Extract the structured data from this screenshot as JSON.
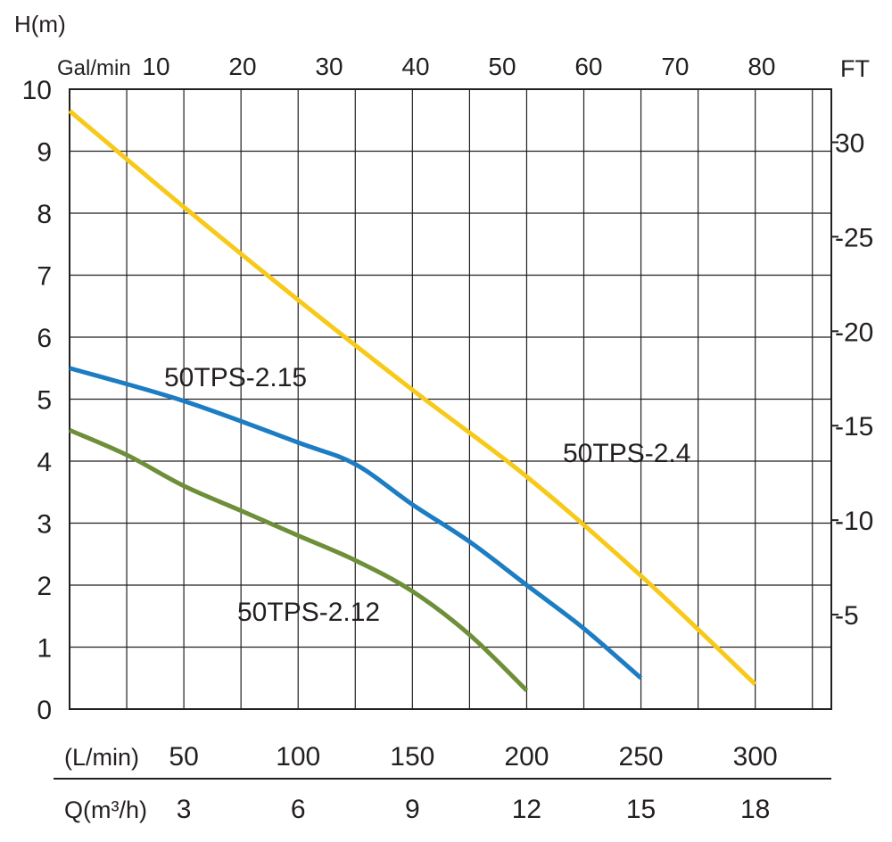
{
  "chart_data": {
    "type": "line",
    "axes": {
      "left": {
        "label": "H(m)",
        "min": 0,
        "max": 10,
        "ticks": [
          "0",
          "1",
          "2",
          "3",
          "4",
          "5",
          "6",
          "7",
          "8",
          "9",
          "10"
        ]
      },
      "top": {
        "label": "Gal/min",
        "ticks": [
          "10",
          "20",
          "30",
          "40",
          "50",
          "60",
          "70",
          "80"
        ]
      },
      "right": {
        "label": "FT",
        "ticks": [
          "30",
          "-25",
          "-20",
          "-15",
          "-10",
          "-5"
        ]
      },
      "bottom_lmin": {
        "label": "(L/min)",
        "ticks": [
          "50",
          "100",
          "150",
          "200",
          "250",
          "300"
        ]
      },
      "bottom_q": {
        "label": "Q(m³/h)",
        "ticks": [
          "3",
          "6",
          "9",
          "12",
          "15",
          "18"
        ]
      }
    },
    "x_unit": "L/min",
    "xlim": [
      0,
      333.3
    ],
    "ylim": [
      0,
      10
    ],
    "grid": true,
    "series": [
      {
        "name": "50TPS-2.4",
        "color": "#f7c919",
        "x": [
          0,
          50,
          100,
          150,
          200,
          250,
          300
        ],
        "y": [
          9.65,
          8.1,
          6.6,
          5.15,
          3.75,
          2.15,
          0.4
        ]
      },
      {
        "name": "50TPS-2.15",
        "color": "#1d7dc3",
        "x": [
          0,
          50,
          100,
          125,
          150,
          175,
          200,
          225,
          250
        ],
        "y": [
          5.5,
          4.97,
          4.3,
          3.95,
          3.3,
          2.7,
          2.0,
          1.3,
          0.5
        ]
      },
      {
        "name": "50TPS-2.12",
        "color": "#6e8f39",
        "x": [
          0,
          25,
          50,
          75,
          100,
          125,
          150,
          175,
          200
        ],
        "y": [
          4.5,
          4.1,
          3.6,
          3.2,
          2.8,
          2.4,
          1.9,
          1.2,
          0.3
        ]
      }
    ],
    "annotations": [
      {
        "text": "50TPS-2.15",
        "series": "50TPS-2.15"
      },
      {
        "text": "50TPS-2.4",
        "series": "50TPS-2.4"
      },
      {
        "text": "50TPS-2.12",
        "series": "50TPS-2.12"
      }
    ]
  },
  "colors": {
    "text": "#231f20",
    "grid": "#231f20"
  }
}
